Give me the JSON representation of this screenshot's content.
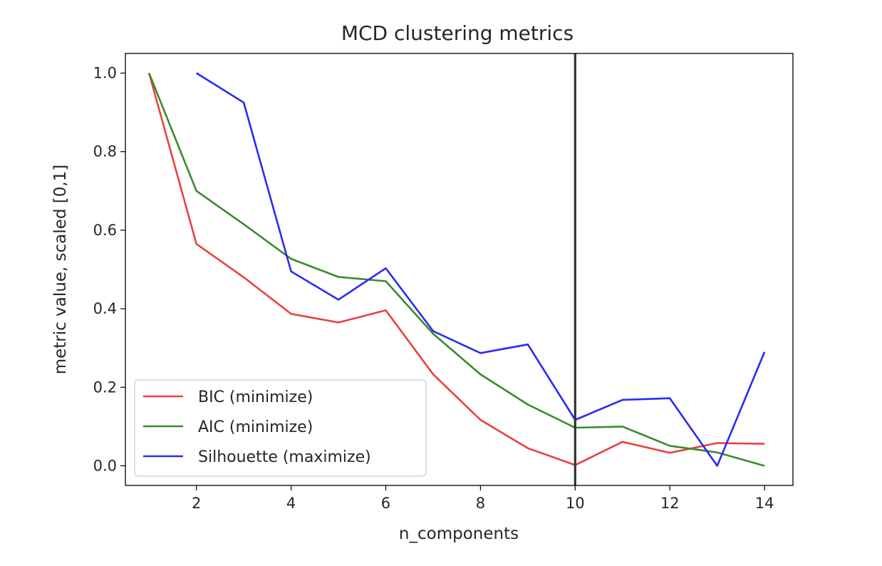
{
  "chart_data": {
    "type": "line",
    "title": "MCD clustering metrics",
    "xlabel": "n_components",
    "ylabel": "metric value, scaled [0,1]",
    "xlim": [
      0.5,
      14.6
    ],
    "ylim": [
      -0.05,
      1.05
    ],
    "xticks": [
      2,
      4,
      6,
      8,
      10,
      12,
      14
    ],
    "yticks": [
      0.0,
      0.2,
      0.4,
      0.6,
      0.8,
      1.0
    ],
    "grid": false,
    "legend_position": "lower-left",
    "vline": {
      "x": 10,
      "color": "#333333"
    },
    "series": [
      {
        "name": "BIC (minimize)",
        "color": "#e8423f",
        "x": [
          1,
          2,
          3,
          4,
          5,
          6,
          7,
          8,
          9,
          10,
          11,
          12,
          13,
          14
        ],
        "y": [
          1.0,
          0.565,
          0.48,
          0.387,
          0.365,
          0.396,
          0.233,
          0.117,
          0.045,
          0.002,
          0.061,
          0.033,
          0.058,
          0.056
        ]
      },
      {
        "name": "AIC (minimize)",
        "color": "#3a8a2e",
        "x": [
          1,
          2,
          3,
          4,
          5,
          6,
          7,
          8,
          9,
          10,
          11,
          12,
          13,
          14
        ],
        "y": [
          1.0,
          0.7,
          0.615,
          0.527,
          0.481,
          0.47,
          0.336,
          0.233,
          0.156,
          0.097,
          0.1,
          0.051,
          0.034,
          0.0
        ]
      },
      {
        "name": "Silhouette (maximize)",
        "color": "#2a2af5",
        "x": [
          2,
          3,
          4,
          5,
          6,
          7,
          8,
          9,
          10,
          11,
          12,
          13,
          14
        ],
        "y": [
          1.0,
          0.925,
          0.495,
          0.423,
          0.503,
          0.343,
          0.287,
          0.309,
          0.117,
          0.168,
          0.172,
          0.0,
          0.29
        ]
      }
    ]
  }
}
